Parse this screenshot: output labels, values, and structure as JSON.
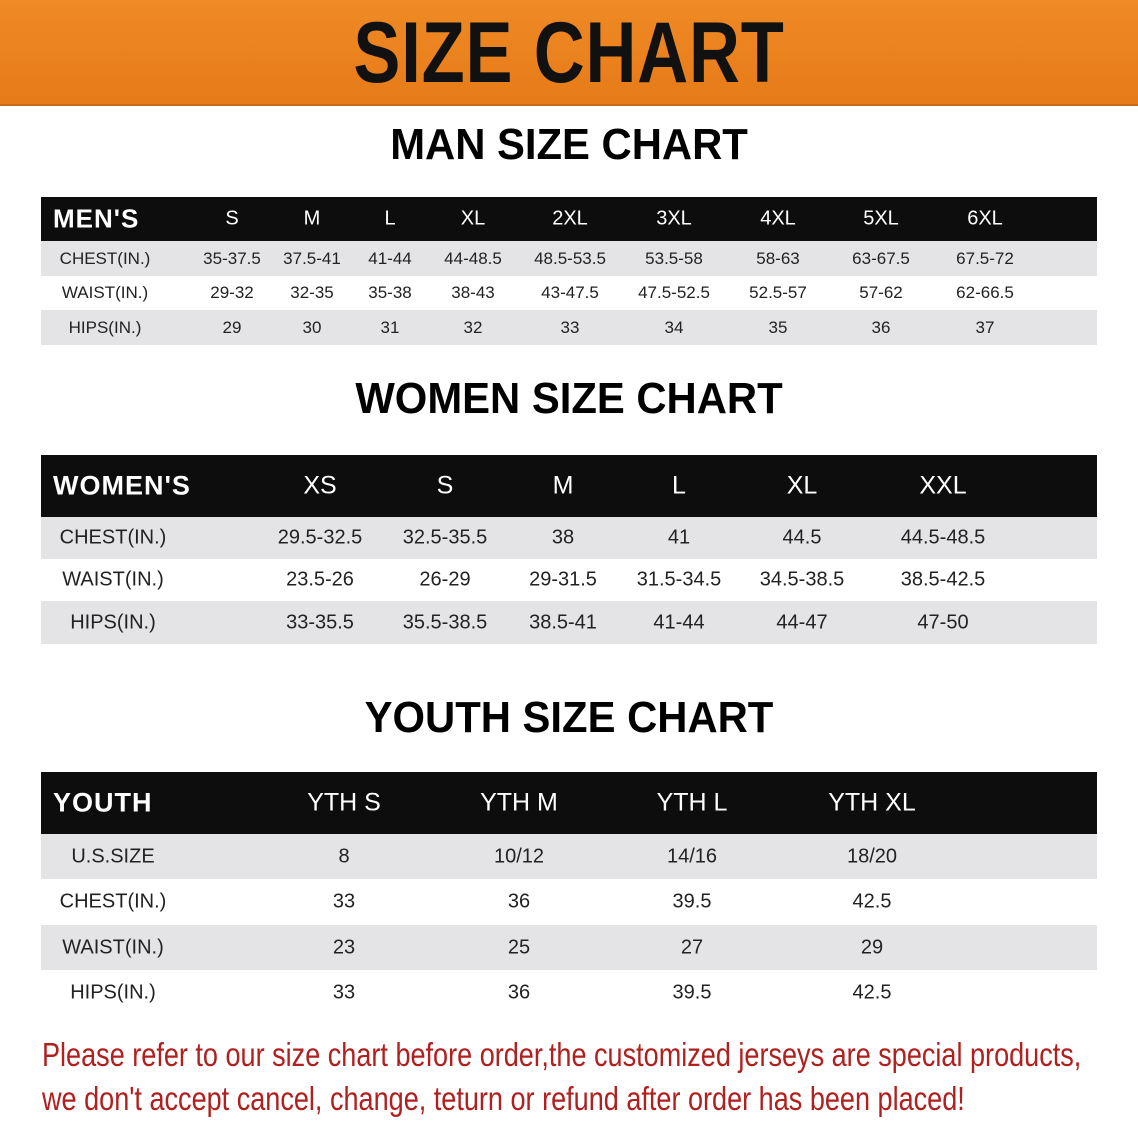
{
  "title": "SIZE CHART",
  "colors": {
    "banner": "#e98220",
    "header": "#0d0d0d",
    "stripe": "#e4e4e6",
    "notice": "#b0201f"
  },
  "men": {
    "section_title": "MAN SIZE CHART",
    "corner": "MEN'S",
    "sizes": [
      "S",
      "M",
      "L",
      "XL",
      "2XL",
      "3XL",
      "4XL",
      "5XL",
      "6XL"
    ],
    "rows": [
      {
        "label": "CHEST(IN.)",
        "values": [
          "35-37.5",
          "37.5-41",
          "41-44",
          "44-48.5",
          "48.5-53.5",
          "53.5-58",
          "58-63",
          "63-67.5",
          "67.5-72"
        ]
      },
      {
        "label": "WAIST(IN.)",
        "values": [
          "29-32",
          "32-35",
          "35-38",
          "38-43",
          "43-47.5",
          "47.5-52.5",
          "52.5-57",
          "57-62",
          "62-66.5"
        ]
      },
      {
        "label": "HIPS(IN.)",
        "values": [
          "29",
          "30",
          "31",
          "32",
          "33",
          "34",
          "35",
          "36",
          "37"
        ]
      }
    ]
  },
  "women": {
    "section_title": "WOMEN SIZE CHART",
    "corner": "WOMEN'S",
    "sizes": [
      "XS",
      "S",
      "M",
      "L",
      "XL",
      "XXL"
    ],
    "rows": [
      {
        "label": "CHEST(IN.)",
        "values": [
          "29.5-32.5",
          "32.5-35.5",
          "38",
          "41",
          "44.5",
          "44.5-48.5"
        ]
      },
      {
        "label": "WAIST(IN.)",
        "values": [
          "23.5-26",
          "26-29",
          "29-31.5",
          "31.5-34.5",
          "34.5-38.5",
          "38.5-42.5"
        ]
      },
      {
        "label": "HIPS(IN.)",
        "values": [
          "33-35.5",
          "35.5-38.5",
          "38.5-41",
          "41-44",
          "44-47",
          "47-50"
        ]
      }
    ]
  },
  "youth": {
    "section_title": "YOUTH SIZE CHART",
    "corner": "YOUTH",
    "sizes": [
      "YTH S",
      "YTH M",
      "YTH L",
      "YTH XL"
    ],
    "rows": [
      {
        "label": "U.S.SIZE",
        "values": [
          "8",
          "10/12",
          "14/16",
          "18/20"
        ]
      },
      {
        "label": "CHEST(IN.)",
        "values": [
          "33",
          "36",
          "39.5",
          "42.5"
        ]
      },
      {
        "label": "WAIST(IN.)",
        "values": [
          "23",
          "25",
          "27",
          "29"
        ]
      },
      {
        "label": "HIPS(IN.)",
        "values": [
          "33",
          "36",
          "39.5",
          "42.5"
        ]
      }
    ]
  },
  "notice": {
    "line1": "Please refer to our size chart before order,the customized jerseys are special products,",
    "line2": "we don't accept cancel, change, teturn or refund after order has been placed!"
  }
}
